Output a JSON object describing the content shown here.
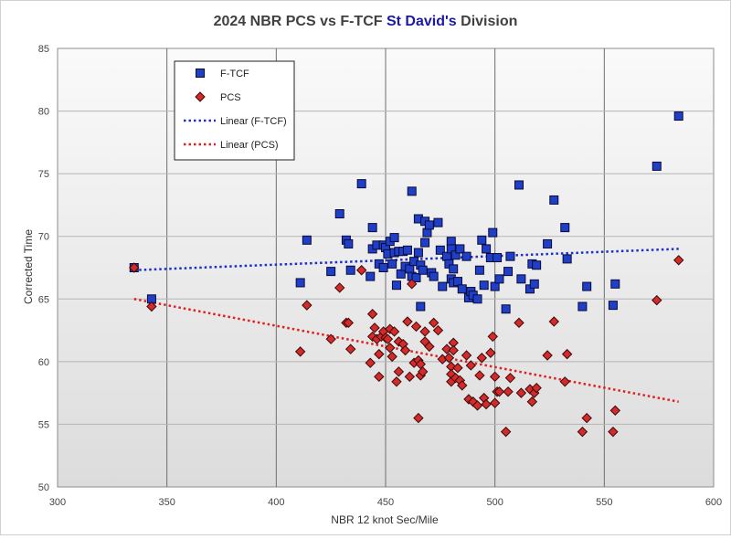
{
  "chart_data": {
    "type": "scatter",
    "title_prefix": "2024 NBR PCS vs F-TCF ",
    "title_highlight": "St David's",
    "title_suffix": " Division",
    "title_highlight_color": "#1a1aa6",
    "xlabel": "NBR 12 knot Sec/Mile",
    "ylabel": "Corrected Time",
    "xlim": [
      300,
      600
    ],
    "ylim": [
      50,
      85
    ],
    "x_ticks": [
      300,
      350,
      400,
      450,
      500,
      550,
      600
    ],
    "y_ticks": [
      50,
      55,
      60,
      65,
      70,
      75,
      80,
      85
    ],
    "grid": true,
    "legend_position": "top-left",
    "series": [
      {
        "name": "F-TCF",
        "marker": "square",
        "color": "#1f3fc6",
        "points": [
          [
            335,
            67.5
          ],
          [
            343,
            65.0
          ],
          [
            411,
            66.3
          ],
          [
            414,
            69.7
          ],
          [
            425,
            67.2
          ],
          [
            429,
            71.8
          ],
          [
            432,
            69.7
          ],
          [
            433,
            69.4
          ],
          [
            434,
            67.3
          ],
          [
            439,
            74.2
          ],
          [
            443,
            66.8
          ],
          [
            444,
            70.7
          ],
          [
            444,
            69.0
          ],
          [
            446,
            69.3
          ],
          [
            447,
            67.8
          ],
          [
            449,
            69.3
          ],
          [
            449,
            67.5
          ],
          [
            450,
            69.1
          ],
          [
            451,
            68.6
          ],
          [
            452,
            69.6
          ],
          [
            453,
            67.8
          ],
          [
            454,
            69.9
          ],
          [
            454,
            68.7
          ],
          [
            455,
            66.1
          ],
          [
            456,
            68.8
          ],
          [
            457,
            67.0
          ],
          [
            458,
            68.8
          ],
          [
            459,
            67.6
          ],
          [
            460,
            68.9
          ],
          [
            461,
            67.4
          ],
          [
            462,
            73.6
          ],
          [
            462,
            66.8
          ],
          [
            463,
            68.0
          ],
          [
            464,
            66.7
          ],
          [
            465,
            71.4
          ],
          [
            465,
            68.7
          ],
          [
            466,
            64.4
          ],
          [
            466,
            67.7
          ],
          [
            467,
            67.3
          ],
          [
            468,
            71.2
          ],
          [
            468,
            69.5
          ],
          [
            469,
            70.3
          ],
          [
            470,
            70.9
          ],
          [
            471,
            67.1
          ],
          [
            472,
            66.8
          ],
          [
            474,
            71.1
          ],
          [
            475,
            68.9
          ],
          [
            476,
            66.0
          ],
          [
            478,
            68.4
          ],
          [
            479,
            67.8
          ],
          [
            480,
            69.6
          ],
          [
            480,
            69.0
          ],
          [
            480,
            66.6
          ],
          [
            481,
            67.4
          ],
          [
            481,
            66.3
          ],
          [
            482,
            68.5
          ],
          [
            483,
            66.4
          ],
          [
            484,
            69.0
          ],
          [
            485,
            65.8
          ],
          [
            487,
            68.4
          ],
          [
            488,
            65.1
          ],
          [
            489,
            65.6
          ],
          [
            490,
            65.3
          ],
          [
            492,
            65.0
          ],
          [
            493,
            67.3
          ],
          [
            494,
            69.7
          ],
          [
            495,
            66.1
          ],
          [
            496,
            69.0
          ],
          [
            498,
            68.3
          ],
          [
            499,
            70.3
          ],
          [
            500,
            66.0
          ],
          [
            501,
            68.3
          ],
          [
            502,
            66.6
          ],
          [
            505,
            64.2
          ],
          [
            506,
            67.2
          ],
          [
            507,
            68.4
          ],
          [
            511,
            74.1
          ],
          [
            512,
            66.6
          ],
          [
            516,
            65.8
          ],
          [
            517,
            67.8
          ],
          [
            518,
            66.2
          ],
          [
            519,
            67.7
          ],
          [
            524,
            69.4
          ],
          [
            527,
            72.9
          ],
          [
            532,
            70.7
          ],
          [
            533,
            68.2
          ],
          [
            540,
            64.4
          ],
          [
            542,
            66.0
          ],
          [
            554,
            64.5
          ],
          [
            555,
            66.2
          ],
          [
            574,
            75.6
          ],
          [
            584,
            79.6
          ]
        ]
      },
      {
        "name": "PCS",
        "marker": "diamond",
        "color": "#d42a2a",
        "points": [
          [
            335,
            67.5
          ],
          [
            343,
            64.4
          ],
          [
            411,
            60.8
          ],
          [
            414,
            64.5
          ],
          [
            425,
            61.8
          ],
          [
            429,
            65.9
          ],
          [
            432,
            63.1
          ],
          [
            433,
            63.1
          ],
          [
            434,
            61.0
          ],
          [
            439,
            67.3
          ],
          [
            443,
            59.9
          ],
          [
            444,
            63.8
          ],
          [
            444,
            62.0
          ],
          [
            445,
            62.7
          ],
          [
            446,
            61.8
          ],
          [
            447,
            60.6
          ],
          [
            447,
            58.8
          ],
          [
            448,
            62.0
          ],
          [
            449,
            62.4
          ],
          [
            450,
            61.9
          ],
          [
            451,
            61.8
          ],
          [
            452,
            62.6
          ],
          [
            452,
            61.1
          ],
          [
            453,
            60.4
          ],
          [
            454,
            62.4
          ],
          [
            455,
            58.4
          ],
          [
            456,
            61.6
          ],
          [
            456,
            59.2
          ],
          [
            458,
            61.4
          ],
          [
            459,
            60.9
          ],
          [
            460,
            63.2
          ],
          [
            461,
            58.8
          ],
          [
            462,
            66.2
          ],
          [
            463,
            59.9
          ],
          [
            464,
            62.8
          ],
          [
            465,
            60.1
          ],
          [
            465,
            55.5
          ],
          [
            466,
            59.8
          ],
          [
            466,
            58.9
          ],
          [
            467,
            59.2
          ],
          [
            468,
            61.6
          ],
          [
            468,
            62.4
          ],
          [
            470,
            61.2
          ],
          [
            472,
            63.1
          ],
          [
            474,
            62.5
          ],
          [
            476,
            60.2
          ],
          [
            478,
            61.0
          ],
          [
            479,
            60.3
          ],
          [
            480,
            59.6
          ],
          [
            480,
            59.0
          ],
          [
            480,
            58.4
          ],
          [
            481,
            61.5
          ],
          [
            481,
            60.9
          ],
          [
            482,
            58.7
          ],
          [
            483,
            59.5
          ],
          [
            484,
            58.5
          ],
          [
            485,
            58.1
          ],
          [
            487,
            60.5
          ],
          [
            488,
            57.0
          ],
          [
            489,
            59.7
          ],
          [
            490,
            56.8
          ],
          [
            492,
            56.5
          ],
          [
            493,
            58.9
          ],
          [
            494,
            60.3
          ],
          [
            495,
            57.1
          ],
          [
            496,
            56.6
          ],
          [
            498,
            60.7
          ],
          [
            499,
            62.0
          ],
          [
            500,
            58.8
          ],
          [
            500,
            56.7
          ],
          [
            501,
            57.6
          ],
          [
            502,
            57.6
          ],
          [
            505,
            54.4
          ],
          [
            506,
            57.6
          ],
          [
            507,
            58.7
          ],
          [
            511,
            63.1
          ],
          [
            512,
            57.5
          ],
          [
            516,
            57.8
          ],
          [
            517,
            56.8
          ],
          [
            518,
            57.5
          ],
          [
            519,
            57.9
          ],
          [
            524,
            60.5
          ],
          [
            527,
            63.2
          ],
          [
            532,
            58.4
          ],
          [
            533,
            60.6
          ],
          [
            540,
            54.4
          ],
          [
            542,
            55.5
          ],
          [
            554,
            54.4
          ],
          [
            555,
            56.1
          ],
          [
            574,
            64.9
          ],
          [
            584,
            68.1
          ]
        ]
      },
      {
        "name": "Linear (F-TCF)",
        "style": "dotted-line",
        "color": "#1f2fc6",
        "points": [
          [
            335,
            67.3
          ],
          [
            584,
            69.0
          ]
        ]
      },
      {
        "name": "Linear (PCS)",
        "style": "dotted-line",
        "color": "#e02020",
        "points": [
          [
            335,
            65.0
          ],
          [
            584,
            56.8
          ]
        ]
      }
    ]
  }
}
